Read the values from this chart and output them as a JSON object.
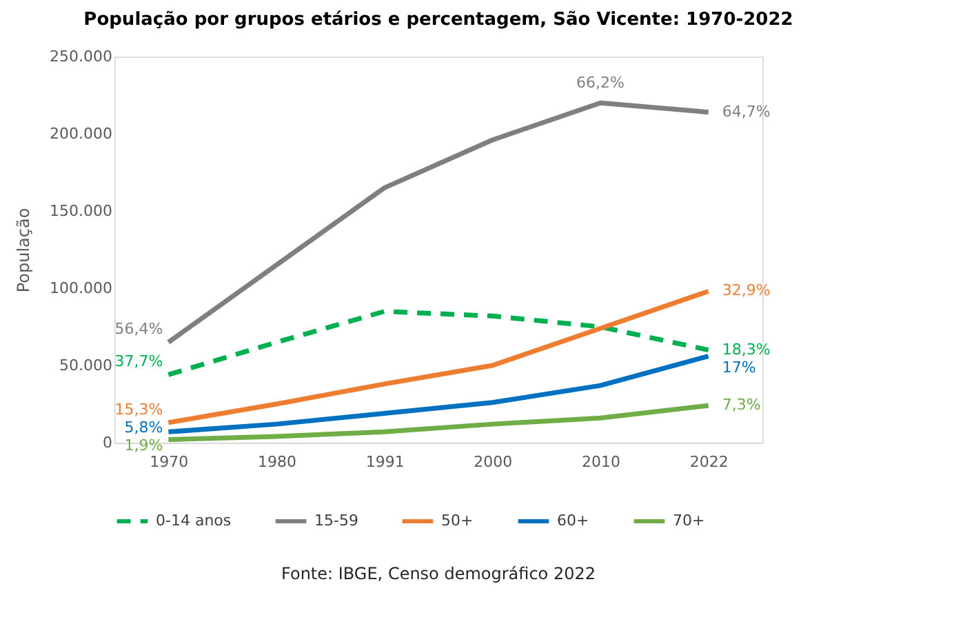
{
  "chart_data": {
    "type": "line",
    "title": "População por grupos etários e percentagem, São Vicente: 1970-2022",
    "ylabel": "População",
    "categories": [
      "1970",
      "1980",
      "1991",
      "2000",
      "2010",
      "2022"
    ],
    "series": [
      {
        "name": "0-14 anos",
        "color": "#00b050",
        "line_style": "dashed",
        "values": [
          44000,
          65000,
          85000,
          82000,
          75000,
          60000
        ]
      },
      {
        "name": "15-59",
        "color": "#7f7f7f",
        "line_style": "solid",
        "values": [
          65000,
          115000,
          165000,
          196000,
          220000,
          214000
        ]
      },
      {
        "name": "50+",
        "color": "#ed7d31",
        "line_style": "solid",
        "values": [
          13000,
          25000,
          38000,
          50000,
          74000,
          98000
        ]
      },
      {
        "name": "60+",
        "color": "#0070c0",
        "line_style": "solid",
        "values": [
          7000,
          12000,
          19000,
          26000,
          37000,
          56000
        ]
      },
      {
        "name": "70+",
        "color": "#70ad47",
        "line_style": "solid",
        "values": [
          2000,
          4000,
          7000,
          12000,
          16000,
          24000
        ]
      }
    ],
    "ylim": [
      0,
      250000
    ],
    "yticks": [
      0,
      {
        "value": 50000,
        "label": "50.000"
      },
      {
        "value": 100000,
        "label": "100.000"
      },
      {
        "value": 150000,
        "label": "150.000"
      },
      {
        "value": 200000,
        "label": "200.000"
      },
      {
        "value": 250000,
        "label": "250.000"
      }
    ],
    "grid": false,
    "legend": "bottom",
    "annotations": [
      {
        "text": "56,4%",
        "x": "1970",
        "y": 65000
      },
      {
        "text": "37,7%",
        "x": "1970",
        "y": 44000
      },
      {
        "text": "15,3%",
        "x": "1970",
        "y": 13000
      },
      {
        "text": "5,8%",
        "x": "1970",
        "y": 7000
      },
      {
        "text": "1,9%",
        "x": "1970",
        "y": 2000
      },
      {
        "text": "66,2%",
        "x": "2010",
        "y": 220000
      },
      {
        "text": "64,7%",
        "x": "2022",
        "y": 214000
      },
      {
        "text": "32,9%",
        "x": "2022",
        "y": 98000
      },
      {
        "text": "18,3%",
        "x": "2022",
        "y": 60000
      },
      {
        "text": "17%",
        "x": "2022",
        "y": 56000
      },
      {
        "text": "7,3%",
        "x": "2022",
        "y": 24000
      },
      "Fonte: IBGE, Censo demográfico 2022"
    ]
  }
}
